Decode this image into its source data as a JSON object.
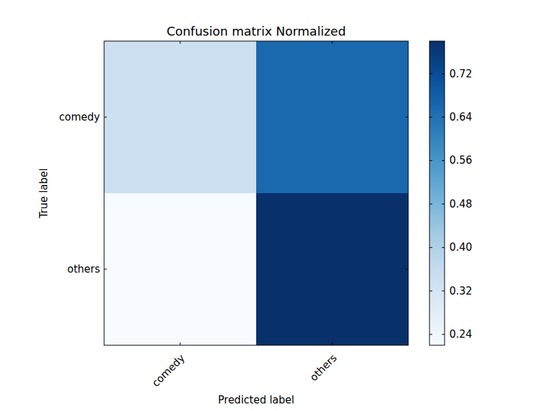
{
  "chart_data": {
    "type": "heatmap",
    "title": "Confusion matrix Normalized",
    "x_label": "Predicted label",
    "y_label": "True label",
    "x_categories": [
      "comedy",
      "others"
    ],
    "y_categories": [
      "comedy",
      "others"
    ],
    "cells": [
      [
        0.34,
        0.66
      ],
      [
        0.22,
        0.78
      ]
    ],
    "colorbar_range": [
      0.22,
      0.78
    ],
    "colorbar_ticks": [
      0.24,
      0.32,
      {
        "value": 0.4,
        "label": "0.40"
      },
      0.48,
      0.56,
      0.64,
      0.72
    ]
  }
}
